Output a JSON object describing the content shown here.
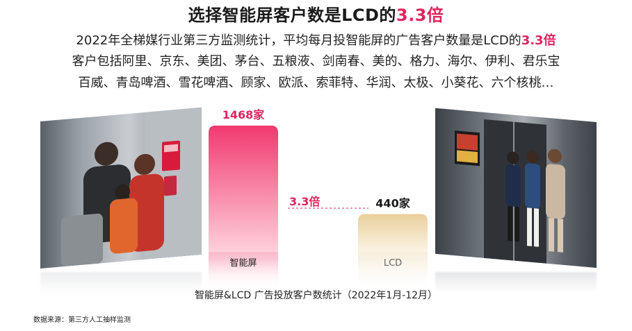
{
  "header": {
    "title_main": "选择智能屏客户数是LCD的",
    "title_accent": "3.3倍",
    "line1_main": "2022年全梯媒行业第三方监测统计，平均每月投智能屏的广告客户数量是LCD的",
    "line1_accent": "3.3倍",
    "line2": "客户包括阿里、京东、美团、茅台、五粮液、剑南春、美的、格力、海尔、伊利、君乐宝",
    "line3": "百威、青岛啤酒、雪花啤酒、顾家、欧派、索菲特、华润、太极、小葵花、六个核桃…"
  },
  "colors": {
    "accent": "#e0245e",
    "smart_bar_top": "#f0396f",
    "smart_bar_bottom": "#ffd1dc",
    "lcd_bar_top": "#e9cf9c",
    "lcd_bar_bottom": "#fbf3e4",
    "ratio_color": "#e0245e"
  },
  "chart_data": {
    "type": "bar",
    "categories": [
      "智能屏",
      "LCD"
    ],
    "values": [
      1468,
      440
    ],
    "value_labels": [
      "1468家",
      "440家"
    ],
    "ratio_label": "3.3倍",
    "caption": "智能屏&LCD 广告投放客户数统计（2022年1月-12月）",
    "ylim": [
      0,
      1468
    ],
    "grid": false
  },
  "footer": {
    "source": "数据来源：第三方人工抽样监测"
  }
}
